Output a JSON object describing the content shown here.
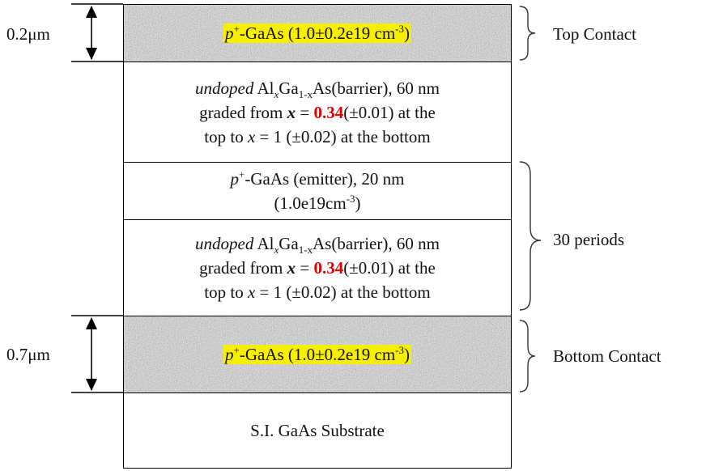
{
  "dimensions": {
    "top_thickness": "0.2μm",
    "bottom_thickness": "0.7μm"
  },
  "labels": {
    "top_contact": "Top Contact",
    "periods": "30 periods",
    "bottom_contact": "Bottom Contact"
  },
  "layers": {
    "top_contact": {
      "p": "p",
      "plus": "+",
      "text": "-GaAs (1.0±0.2e19 cm",
      "exp": "-3",
      "close": ")"
    },
    "barrier_top": {
      "undoped": "undoped",
      "al": " Al",
      "x1": "x",
      "ga": "Ga",
      "sub": "1-x",
      "rest": "As(barrier), 60 nm",
      "graded": "graded from ",
      "xbold": "x",
      "eq": " = ",
      "val": "0.34",
      "tol1": "(±0.01) at the",
      "top_to": "top to ",
      "x2": "x",
      "eq2": " = 1 (±0.02) at the bottom"
    },
    "emitter": {
      "p": "p",
      "plus": "+",
      "line1": "-GaAs (emitter), 20 nm",
      "line2a": "(1.0e19cm",
      "exp": "-3",
      "line2b": ")"
    },
    "barrier_period": {
      "undoped": "undoped",
      "al": " Al",
      "x1": "x",
      "ga": "Ga",
      "sub": "1-x",
      "rest": "As(barrier), 60 nm",
      "graded": "graded from ",
      "xbold": "x",
      "eq": " = ",
      "val": "0.34",
      "tol1": "(±0.01) at the",
      "top_to": "top to ",
      "x2": "x",
      "eq2": " = 1 (±0.02) at the bottom"
    },
    "bottom_contact": {
      "p": "p",
      "plus": "+",
      "text": "-GaAs (1.0±0.2e19 cm",
      "exp": "-3",
      "close": ")"
    },
    "substrate": {
      "text": "S.I. GaAs Substrate"
    }
  }
}
